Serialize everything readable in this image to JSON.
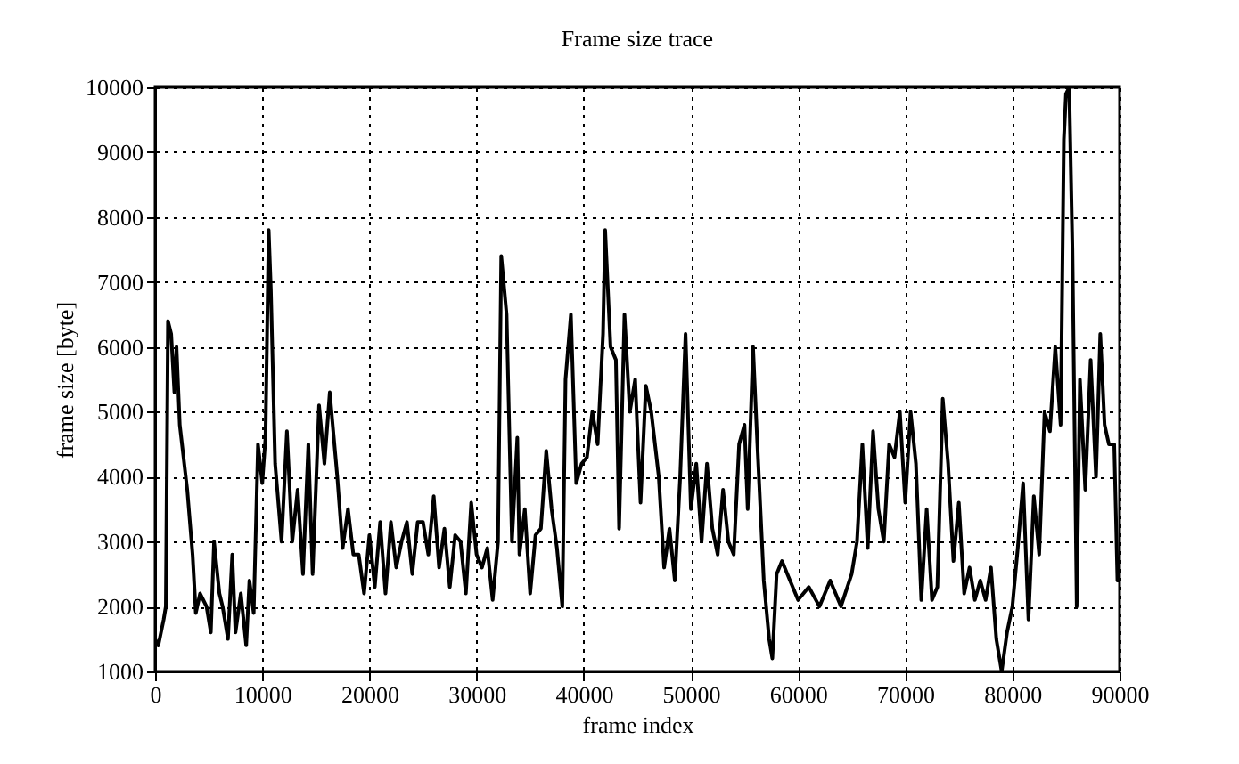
{
  "chart_data": {
    "type": "line",
    "title": "Frame size trace",
    "xlabel": "frame index",
    "ylabel": "frame size [byte]",
    "x": [
      0,
      300,
      800,
      1000,
      1200,
      1500,
      1800,
      2000,
      2300,
      3000,
      3500,
      3800,
      4200,
      4800,
      5200,
      5500,
      6000,
      6300,
      6800,
      7200,
      7500,
      8000,
      8500,
      8800,
      9200,
      9600,
      10000,
      10300,
      10600,
      10800,
      11200,
      11800,
      12300,
      12800,
      13300,
      13800,
      14300,
      14700,
      15300,
      15800,
      16300,
      17000,
      17500,
      18000,
      18500,
      19000,
      19500,
      20000,
      20500,
      21000,
      21500,
      22000,
      22500,
      23000,
      23500,
      24000,
      24500,
      25000,
      25500,
      26000,
      26500,
      27000,
      27500,
      28000,
      28500,
      29000,
      29500,
      30000,
      30500,
      31000,
      31500,
      32000,
      32300,
      32800,
      33300,
      33800,
      34000,
      34500,
      35000,
      35500,
      36000,
      36500,
      37000,
      37500,
      38000,
      38300,
      38800,
      39300,
      39800,
      40300,
      40800,
      41300,
      41800,
      42000,
      42500,
      43000,
      43300,
      43800,
      44300,
      44800,
      45300,
      45800,
      46300,
      47000,
      47500,
      48000,
      48500,
      49000,
      49500,
      50000,
      50500,
      51000,
      51500,
      52000,
      52500,
      53000,
      53500,
      54000,
      54500,
      55000,
      55300,
      55800,
      56200,
      56800,
      57300,
      57600,
      58000,
      58500,
      59000,
      60000,
      61000,
      62000,
      63000,
      64000,
      65000,
      65500,
      66000,
      66500,
      67000,
      67500,
      68000,
      68500,
      69000,
      69500,
      70000,
      70500,
      71000,
      71500,
      72000,
      72500,
      73000,
      73500,
      74000,
      74500,
      75000,
      75500,
      76000,
      76500,
      77000,
      77500,
      78000,
      78500,
      79000,
      79500,
      80000,
      80500,
      81000,
      81500,
      82000,
      82500,
      83000,
      83500,
      84000,
      84500,
      84800,
      85000,
      85300,
      85600,
      86000,
      86300,
      86800,
      87300,
      87800,
      88200,
      88600,
      89000,
      89500,
      89800,
      90000
    ],
    "series": [
      {
        "color": "#000000",
        "values": [
          1500,
          1400,
          1800,
          2000,
          6400,
          6200,
          5300,
          6000,
          4800,
          3800,
          2800,
          1900,
          2200,
          2000,
          1600,
          3000,
          2200,
          2000,
          1500,
          2800,
          1600,
          2200,
          1400,
          2400,
          1900,
          4500,
          3900,
          4600,
          7800,
          6900,
          4200,
          3000,
          4700,
          3000,
          3800,
          2500,
          4500,
          2500,
          5100,
          4200,
          5300,
          4000,
          2900,
          3500,
          2800,
          2800,
          2200,
          3100,
          2300,
          3300,
          2200,
          3300,
          2600,
          3000,
          3300,
          2500,
          3300,
          3300,
          2800,
          3700,
          2600,
          3200,
          2300,
          3100,
          3000,
          2200,
          3600,
          2800,
          2600,
          2900,
          2100,
          3000,
          7400,
          6500,
          3000,
          4600,
          2800,
          3500,
          2200,
          3100,
          3200,
          4400,
          3500,
          2900,
          2000,
          5500,
          6500,
          3900,
          4200,
          4300,
          5000,
          4500,
          6200,
          7800,
          6000,
          5800,
          3200,
          6500,
          5000,
          5500,
          3600,
          5400,
          5000,
          4000,
          2600,
          3200,
          2400,
          4000,
          6200,
          3500,
          4200,
          3000,
          4200,
          3200,
          2800,
          3800,
          3000,
          2800,
          4500,
          4800,
          3500,
          6000,
          4500,
          2400,
          1500,
          1200,
          2500,
          2700,
          2500,
          2100,
          2300,
          2000,
          2400,
          2000,
          2500,
          3000,
          4500,
          2900,
          4700,
          3500,
          3000,
          4500,
          4300,
          5000,
          3600,
          5000,
          4200,
          2100,
          3500,
          2100,
          2300,
          5200,
          4200,
          2700,
          3600,
          2200,
          2600,
          2100,
          2400,
          2100,
          2600,
          1500,
          1000,
          1600,
          2000,
          2900,
          3900,
          1800,
          3700,
          2800,
          5000,
          4700,
          6000,
          4800,
          9200,
          9900,
          10000,
          7500,
          2000,
          5500,
          3800,
          5800,
          4000,
          6200,
          4800,
          4500,
          4500,
          2400,
          2400
        ]
      }
    ],
    "xlim": [
      0,
      90000
    ],
    "xticks": [
      0,
      10000,
      20000,
      30000,
      40000,
      50000,
      60000,
      70000,
      80000,
      90000
    ],
    "ylim": [
      1000,
      10000
    ],
    "yticks": [
      1000,
      2000,
      3000,
      4000,
      5000,
      6000,
      7000,
      8000,
      9000,
      10000
    ],
    "grid": true,
    "line_style": "solid",
    "marker": "none"
  }
}
